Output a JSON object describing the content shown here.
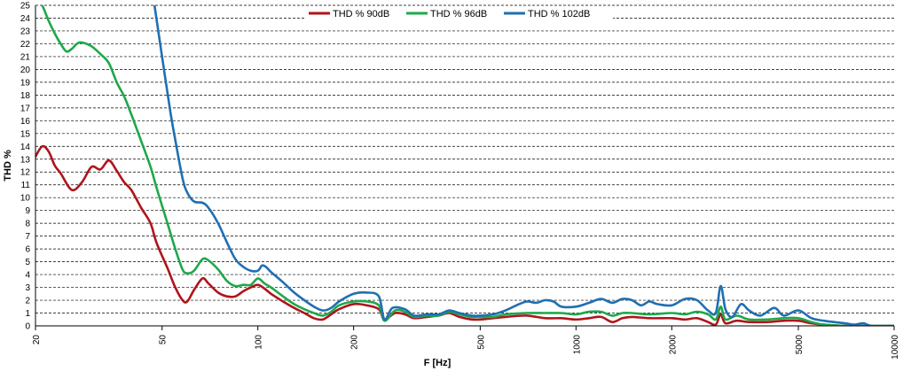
{
  "chart_data": {
    "type": "line",
    "title": "",
    "xlabel": "F [Hz]",
    "ylabel": "THD %",
    "x_scale": "log",
    "xlim": [
      20,
      10000
    ],
    "ylim": [
      0,
      25
    ],
    "x_ticks": [
      "20",
      "50",
      "100",
      "200",
      "500",
      "1000",
      "2000",
      "5000",
      "10000"
    ],
    "y_ticks": [
      "0",
      "1",
      "2",
      "3",
      "4",
      "5",
      "6",
      "7",
      "8",
      "9",
      "10",
      "11",
      "12",
      "13",
      "14",
      "15",
      "16",
      "17",
      "18",
      "19",
      "20",
      "21",
      "22",
      "23",
      "24",
      "25"
    ],
    "grid": "horizontal dashed",
    "legend_position": "top-center",
    "series": [
      {
        "name": "THD % 90dB",
        "color": "#b0141c",
        "points": [
          [
            20,
            13.2
          ],
          [
            21,
            14.0
          ],
          [
            22,
            13.6
          ],
          [
            23,
            12.5
          ],
          [
            24,
            11.9
          ],
          [
            26,
            10.6
          ],
          [
            28,
            11.2
          ],
          [
            30,
            12.4
          ],
          [
            32,
            12.2
          ],
          [
            34,
            12.9
          ],
          [
            36,
            12.1
          ],
          [
            38,
            11.2
          ],
          [
            40,
            10.6
          ],
          [
            43,
            9.2
          ],
          [
            46,
            8.0
          ],
          [
            48,
            6.5
          ],
          [
            52,
            4.5
          ],
          [
            55,
            3.0
          ],
          [
            58,
            2.0
          ],
          [
            60,
            1.9
          ],
          [
            63,
            2.8
          ],
          [
            67,
            3.7
          ],
          [
            70,
            3.3
          ],
          [
            75,
            2.6
          ],
          [
            80,
            2.3
          ],
          [
            85,
            2.3
          ],
          [
            90,
            2.7
          ],
          [
            95,
            3.0
          ],
          [
            100,
            3.2
          ],
          [
            105,
            2.9
          ],
          [
            110,
            2.5
          ],
          [
            120,
            1.9
          ],
          [
            130,
            1.4
          ],
          [
            140,
            1.0
          ],
          [
            150,
            0.6
          ],
          [
            160,
            0.5
          ],
          [
            170,
            0.9
          ],
          [
            180,
            1.3
          ],
          [
            200,
            1.7
          ],
          [
            220,
            1.6
          ],
          [
            240,
            1.3
          ],
          [
            250,
            0.5
          ],
          [
            270,
            1.0
          ],
          [
            290,
            0.9
          ],
          [
            310,
            0.6
          ],
          [
            340,
            0.7
          ],
          [
            370,
            0.8
          ],
          [
            400,
            1.0
          ],
          [
            430,
            0.7
          ],
          [
            470,
            0.5
          ],
          [
            500,
            0.5
          ],
          [
            550,
            0.6
          ],
          [
            600,
            0.7
          ],
          [
            700,
            0.8
          ],
          [
            800,
            0.6
          ],
          [
            900,
            0.6
          ],
          [
            1000,
            0.5
          ],
          [
            1100,
            0.6
          ],
          [
            1200,
            0.7
          ],
          [
            1300,
            0.3
          ],
          [
            1400,
            0.6
          ],
          [
            1500,
            0.7
          ],
          [
            1700,
            0.6
          ],
          [
            2000,
            0.6
          ],
          [
            2200,
            0.5
          ],
          [
            2400,
            0.6
          ],
          [
            2600,
            0.3
          ],
          [
            2750,
            0.1
          ],
          [
            2850,
            0.9
          ],
          [
            2950,
            0.2
          ],
          [
            3200,
            0.4
          ],
          [
            3500,
            0.3
          ],
          [
            4000,
            0.3
          ],
          [
            4500,
            0.4
          ],
          [
            5000,
            0.4
          ],
          [
            5500,
            0.2
          ],
          [
            6000,
            0.1
          ],
          [
            7000,
            0.0
          ],
          [
            8000,
            0.0
          ],
          [
            10000,
            0.0
          ]
        ]
      },
      {
        "name": "THD % 96dB",
        "color": "#1ea84b",
        "points": [
          [
            20,
            26.0
          ],
          [
            21,
            25.0
          ],
          [
            22,
            23.8
          ],
          [
            23,
            22.8
          ],
          [
            24,
            22.0
          ],
          [
            25,
            21.4
          ],
          [
            26,
            21.6
          ],
          [
            27,
            22.0
          ],
          [
            28,
            22.1
          ],
          [
            30,
            21.8
          ],
          [
            32,
            21.2
          ],
          [
            34,
            20.5
          ],
          [
            36,
            19.0
          ],
          [
            38,
            17.9
          ],
          [
            40,
            16.5
          ],
          [
            43,
            14.4
          ],
          [
            46,
            12.4
          ],
          [
            48,
            10.8
          ],
          [
            52,
            8.0
          ],
          [
            55,
            6.0
          ],
          [
            58,
            4.4
          ],
          [
            60,
            4.1
          ],
          [
            63,
            4.3
          ],
          [
            67,
            5.2
          ],
          [
            70,
            5.1
          ],
          [
            75,
            4.4
          ],
          [
            80,
            3.5
          ],
          [
            85,
            3.1
          ],
          [
            90,
            3.2
          ],
          [
            95,
            3.2
          ],
          [
            100,
            3.7
          ],
          [
            105,
            3.3
          ],
          [
            110,
            3.0
          ],
          [
            120,
            2.3
          ],
          [
            130,
            1.7
          ],
          [
            140,
            1.3
          ],
          [
            150,
            1.0
          ],
          [
            160,
            0.8
          ],
          [
            170,
            1.1
          ],
          [
            180,
            1.6
          ],
          [
            200,
            1.9
          ],
          [
            220,
            1.9
          ],
          [
            240,
            1.6
          ],
          [
            250,
            0.4
          ],
          [
            270,
            1.2
          ],
          [
            290,
            1.1
          ],
          [
            310,
            0.7
          ],
          [
            340,
            0.8
          ],
          [
            370,
            0.8
          ],
          [
            400,
            1.1
          ],
          [
            430,
            0.9
          ],
          [
            470,
            0.7
          ],
          [
            500,
            0.7
          ],
          [
            550,
            0.7
          ],
          [
            600,
            0.9
          ],
          [
            700,
            1.0
          ],
          [
            800,
            1.0
          ],
          [
            900,
            1.0
          ],
          [
            1000,
            0.9
          ],
          [
            1100,
            1.1
          ],
          [
            1200,
            1.1
          ],
          [
            1300,
            0.8
          ],
          [
            1400,
            1.0
          ],
          [
            1500,
            1.0
          ],
          [
            1700,
            0.9
          ],
          [
            2000,
            1.0
          ],
          [
            2200,
            0.9
          ],
          [
            2400,
            1.1
          ],
          [
            2600,
            0.9
          ],
          [
            2750,
            0.5
          ],
          [
            2850,
            1.5
          ],
          [
            2950,
            0.5
          ],
          [
            3200,
            0.8
          ],
          [
            3500,
            0.5
          ],
          [
            4000,
            0.5
          ],
          [
            4500,
            0.6
          ],
          [
            5000,
            0.6
          ],
          [
            5500,
            0.3
          ],
          [
            6000,
            0.1
          ],
          [
            7000,
            0.0
          ],
          [
            8000,
            0.0
          ],
          [
            10000,
            0.0
          ]
        ]
      },
      {
        "name": "THD % 102dB",
        "color": "#1f6fb2",
        "points": [
          [
            47,
            25.5
          ],
          [
            50,
            21.0
          ],
          [
            53,
            16.8
          ],
          [
            55,
            14.5
          ],
          [
            58,
            11.5
          ],
          [
            60,
            10.4
          ],
          [
            63,
            9.7
          ],
          [
            67,
            9.6
          ],
          [
            70,
            9.2
          ],
          [
            75,
            8.0
          ],
          [
            80,
            6.5
          ],
          [
            85,
            5.2
          ],
          [
            90,
            4.6
          ],
          [
            95,
            4.3
          ],
          [
            100,
            4.3
          ],
          [
            103,
            4.7
          ],
          [
            106,
            4.6
          ],
          [
            110,
            4.2
          ],
          [
            120,
            3.4
          ],
          [
            130,
            2.6
          ],
          [
            140,
            2.0
          ],
          [
            150,
            1.5
          ],
          [
            160,
            1.2
          ],
          [
            170,
            1.4
          ],
          [
            180,
            1.9
          ],
          [
            200,
            2.5
          ],
          [
            220,
            2.6
          ],
          [
            240,
            2.3
          ],
          [
            250,
            0.5
          ],
          [
            265,
            1.4
          ],
          [
            290,
            1.3
          ],
          [
            310,
            0.8
          ],
          [
            340,
            0.9
          ],
          [
            370,
            0.9
          ],
          [
            400,
            1.2
          ],
          [
            430,
            1.0
          ],
          [
            470,
            0.8
          ],
          [
            500,
            0.8
          ],
          [
            550,
            0.9
          ],
          [
            600,
            1.2
          ],
          [
            650,
            1.6
          ],
          [
            700,
            1.9
          ],
          [
            750,
            1.8
          ],
          [
            800,
            2.0
          ],
          [
            850,
            1.9
          ],
          [
            900,
            1.5
          ],
          [
            1000,
            1.5
          ],
          [
            1100,
            1.8
          ],
          [
            1200,
            2.1
          ],
          [
            1300,
            1.8
          ],
          [
            1400,
            2.1
          ],
          [
            1500,
            2.0
          ],
          [
            1600,
            1.6
          ],
          [
            1700,
            1.9
          ],
          [
            1800,
            1.7
          ],
          [
            2000,
            1.6
          ],
          [
            2200,
            2.1
          ],
          [
            2400,
            2.0
          ],
          [
            2600,
            1.2
          ],
          [
            2750,
            1.0
          ],
          [
            2850,
            3.1
          ],
          [
            2950,
            1.3
          ],
          [
            3100,
            0.7
          ],
          [
            3300,
            1.7
          ],
          [
            3500,
            1.2
          ],
          [
            3800,
            0.8
          ],
          [
            4200,
            1.4
          ],
          [
            4500,
            0.8
          ],
          [
            5000,
            1.2
          ],
          [
            5500,
            0.6
          ],
          [
            6000,
            0.4
          ],
          [
            7000,
            0.2
          ],
          [
            7500,
            0.1
          ],
          [
            8000,
            0.2
          ],
          [
            8500,
            0.0
          ],
          [
            10000,
            0.0
          ]
        ]
      }
    ]
  }
}
